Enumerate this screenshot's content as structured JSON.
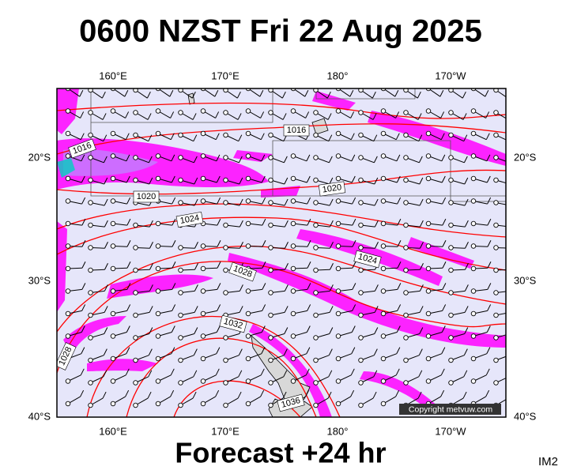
{
  "title": "0600 NZST Fri 22 Aug 2025",
  "map": {
    "lon_labels": [
      "160°E",
      "170°E",
      "180°",
      "170°W"
    ],
    "lat_labels": [
      "20°S",
      "30°S",
      "40°S"
    ],
    "isobar_labels": [
      "1016",
      "1016",
      "1020",
      "1020",
      "1024",
      "1024",
      "1028",
      "1028",
      "1032",
      "1036"
    ],
    "copyright": "Copyright metvuw.com"
  },
  "footer": "Forecast +24 hr",
  "code": "IM2"
}
